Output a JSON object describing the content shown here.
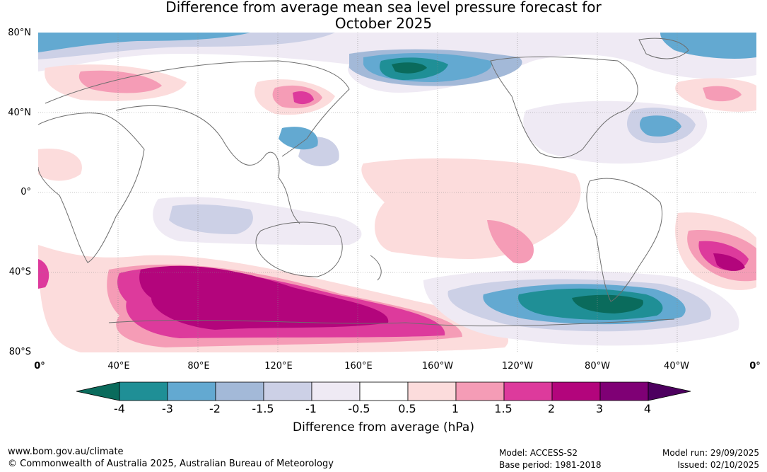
{
  "title_line1": "Difference from average mean sea level pressure forecast for",
  "title_line2": "October 2025",
  "lat_labels": [
    "80°N",
    "40°N",
    "0°",
    "40°S",
    "80°S"
  ],
  "lon_labels": [
    "0°",
    "40°E",
    "80°E",
    "120°E",
    "160°E",
    "160°W",
    "120°W",
    "80°W",
    "40°W",
    "0°"
  ],
  "legend": {
    "label": "Difference from average (hPa)",
    "ticks": [
      "-4",
      "-3",
      "-2",
      "-1.5",
      "-1",
      "-0.5",
      "0.5",
      "1",
      "1.5",
      "2",
      "3",
      "4"
    ],
    "colors": [
      "#0a6b5c",
      "#1f8f96",
      "#63a9d1",
      "#a3b9d8",
      "#ccd0e6",
      "#efeaf4",
      "#ffffff",
      "#fcdcdc",
      "#f59cb6",
      "#dd3a9c",
      "#b3057c",
      "#7f0075",
      "#4d005f"
    ]
  },
  "footer": {
    "website": "www.bom.gov.au/climate",
    "copyright": "© Commonwealth of Australia 2025, Australian Bureau of Meteorology",
    "model": "Model: ACCESS-S2",
    "base_period": "Base period: 1981-2018",
    "model_run": "Model run: 29/09/2025",
    "issued": "Issued: 02/10/2025"
  }
}
